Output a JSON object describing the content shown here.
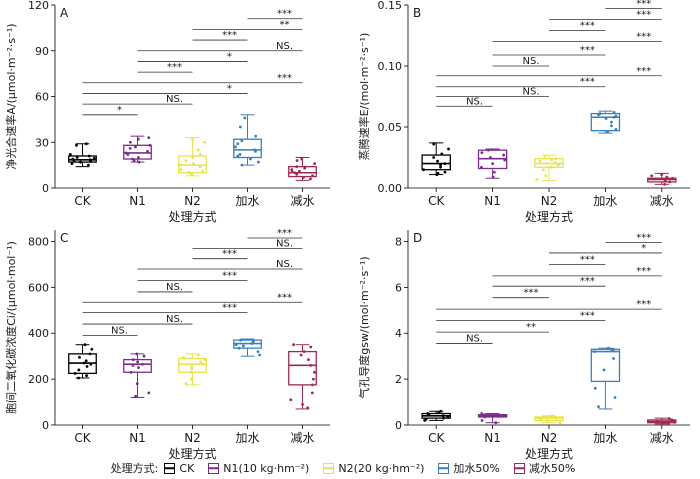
{
  "colors": {
    "CK": "#000000",
    "N1": "#7b2d8e",
    "N2": "#e8e44a",
    "water_add": "#3a7fc0",
    "water_red": "#a1284f"
  },
  "legend": {
    "title": "处理方式:",
    "items": [
      {
        "label": "CK",
        "color": "#000000"
      },
      {
        "label": "N1(10 kg·hm⁻²)",
        "color": "#7b2d8e"
      },
      {
        "label": "N2(20 kg·hm⁻²)",
        "color": "#e8e44a"
      },
      {
        "label": "加水50%",
        "color": "#3a7fc0"
      },
      {
        "label": "减水50%",
        "color": "#a1284f"
      }
    ]
  },
  "chart_data": [
    {
      "panel": "A",
      "type": "box",
      "ylabel": "净光合速率A/(μmol·m⁻²·s⁻¹)",
      "xlabel": "处理方式",
      "categories": [
        "CK",
        "N1",
        "N2",
        "加水",
        "减水"
      ],
      "ylim": [
        0,
        120
      ],
      "yticks": [
        0,
        30,
        60,
        90,
        120
      ],
      "boxes": [
        {
          "min": 14,
          "q1": 17,
          "median": 18.5,
          "q3": 21,
          "max": 29,
          "points": [
            15,
            16,
            17,
            17.5,
            18,
            18.5,
            19,
            19.5,
            20,
            21,
            22,
            28,
            29
          ]
        },
        {
          "min": 17,
          "q1": 19,
          "median": 23,
          "q3": 28,
          "max": 34,
          "points": [
            17,
            18,
            19,
            20,
            22,
            23,
            24,
            26,
            27,
            28,
            30,
            32,
            33
          ]
        },
        {
          "min": 8,
          "q1": 10,
          "median": 15,
          "q3": 21,
          "max": 33,
          "points": [
            9,
            10,
            11,
            12,
            14,
            15,
            16,
            18,
            20,
            22,
            25,
            30,
            32
          ]
        },
        {
          "min": 15,
          "q1": 20,
          "median": 25,
          "q3": 32,
          "max": 48,
          "points": [
            15,
            17,
            19,
            21,
            22,
            24,
            25,
            27,
            29,
            31,
            34,
            40,
            46
          ]
        },
        {
          "min": 5,
          "q1": 7.5,
          "median": 10,
          "q3": 14,
          "max": 20,
          "points": [
            6,
            7,
            8,
            9,
            10,
            10.5,
            11,
            12,
            13,
            14,
            16,
            18,
            19
          ]
        }
      ],
      "comparisons": [
        {
          "from": 0,
          "to": 1,
          "y": 48,
          "label": "*"
        },
        {
          "from": 0,
          "to": 2,
          "y": 55,
          "label": "NS."
        },
        {
          "from": 0,
          "to": 3,
          "y": 62,
          "label": "*"
        },
        {
          "from": 0,
          "to": 4,
          "y": 69,
          "label": "***"
        },
        {
          "from": 1,
          "to": 2,
          "y": 76,
          "label": "***"
        },
        {
          "from": 1,
          "to": 3,
          "y": 83,
          "label": "*"
        },
        {
          "from": 1,
          "to": 4,
          "y": 90,
          "label": "NS."
        },
        {
          "from": 2,
          "to": 3,
          "y": 97,
          "label": "***"
        },
        {
          "from": 2,
          "to": 4,
          "y": 104,
          "label": "**"
        },
        {
          "from": 3,
          "to": 4,
          "y": 111,
          "label": "***"
        }
      ]
    },
    {
      "panel": "B",
      "type": "box",
      "ylabel": "蒸腾速率E/(mol·m⁻²·s⁻¹)",
      "xlabel": "处理方式",
      "categories": [
        "CK",
        "N1",
        "N2",
        "加水",
        "减水"
      ],
      "ylim": [
        0,
        0.15
      ],
      "yticks": [
        "0.00",
        "0.05",
        "0.10",
        "0.15"
      ],
      "boxes": [
        {
          "min": 0.011,
          "q1": 0.015,
          "median": 0.02,
          "q3": 0.027,
          "max": 0.037,
          "points": [
            0.011,
            0.012,
            0.013,
            0.015,
            0.017,
            0.019,
            0.02,
            0.022,
            0.025,
            0.028,
            0.032,
            0.036
          ]
        },
        {
          "min": 0.008,
          "q1": 0.016,
          "median": 0.024,
          "q3": 0.031,
          "max": 0.032,
          "points": [
            0.009,
            0.013,
            0.017,
            0.02,
            0.023,
            0.025,
            0.027,
            0.029,
            0.031
          ]
        },
        {
          "min": 0.006,
          "q1": 0.017,
          "median": 0.02,
          "q3": 0.024,
          "max": 0.027,
          "points": [
            0.007,
            0.01,
            0.015,
            0.017,
            0.019,
            0.021,
            0.022,
            0.023,
            0.024,
            0.026
          ]
        },
        {
          "min": 0.045,
          "q1": 0.047,
          "median": 0.058,
          "q3": 0.061,
          "max": 0.063,
          "points": [
            0.046,
            0.048,
            0.051,
            0.054,
            0.057,
            0.058,
            0.059,
            0.06,
            0.061,
            0.062
          ]
        },
        {
          "min": 0.003,
          "q1": 0.005,
          "median": 0.007,
          "q3": 0.008,
          "max": 0.012,
          "points": [
            0.003,
            0.005,
            0.006,
            0.007,
            0.008,
            0.009,
            0.01,
            0.011
          ]
        }
      ],
      "comparisons": [
        {
          "from": 0,
          "to": 1,
          "y": 0.067,
          "label": "NS."
        },
        {
          "from": 0,
          "to": 2,
          "y": 0.075,
          "label": "NS."
        },
        {
          "from": 0,
          "to": 3,
          "y": 0.083,
          "label": "***"
        },
        {
          "from": 0,
          "to": 4,
          "y": 0.092,
          "label": "***"
        },
        {
          "from": 1,
          "to": 2,
          "y": 0.1,
          "label": "NS."
        },
        {
          "from": 1,
          "to": 3,
          "y": 0.109,
          "label": "***"
        },
        {
          "from": 1,
          "to": 4,
          "y": 0.12,
          "label": "***"
        },
        {
          "from": 2,
          "to": 3,
          "y": 0.129,
          "label": "***"
        },
        {
          "from": 2,
          "to": 4,
          "y": 0.138,
          "label": "***"
        },
        {
          "from": 3,
          "to": 4,
          "y": 0.147,
          "label": "***"
        }
      ]
    },
    {
      "panel": "C",
      "type": "box",
      "ylabel": "胞间二氧化碳浓度Ci/(μmol·mol⁻¹)",
      "xlabel": "处理方式",
      "categories": [
        "CK",
        "N1",
        "N2",
        "加水",
        "减水"
      ],
      "ylim": [
        0,
        850
      ],
      "yticks": [
        0,
        200,
        400,
        600,
        800
      ],
      "boxes": [
        {
          "min": 205,
          "q1": 225,
          "median": 270,
          "q3": 310,
          "max": 350,
          "points": [
            205,
            215,
            225,
            240,
            255,
            265,
            270,
            280,
            295,
            310,
            330,
            350
          ]
        },
        {
          "min": 120,
          "q1": 230,
          "median": 265,
          "q3": 285,
          "max": 310,
          "points": [
            125,
            140,
            180,
            230,
            250,
            260,
            265,
            275,
            285,
            300,
            310
          ]
        },
        {
          "min": 175,
          "q1": 230,
          "median": 265,
          "q3": 290,
          "max": 310,
          "points": [
            180,
            200,
            230,
            245,
            255,
            265,
            275,
            285,
            295,
            305
          ]
        },
        {
          "min": 300,
          "q1": 335,
          "median": 355,
          "q3": 370,
          "max": 375,
          "points": [
            305,
            320,
            335,
            345,
            350,
            355,
            360,
            365,
            370
          ]
        },
        {
          "min": 70,
          "q1": 175,
          "median": 260,
          "q3": 320,
          "max": 350,
          "points": [
            75,
            90,
            110,
            140,
            175,
            200,
            230,
            260,
            285,
            305,
            320,
            340,
            350
          ]
        }
      ],
      "comparisons": [
        {
          "from": 0,
          "to": 1,
          "y": 390,
          "label": "NS."
        },
        {
          "from": 0,
          "to": 2,
          "y": 440,
          "label": "NS."
        },
        {
          "from": 0,
          "to": 3,
          "y": 490,
          "label": "***"
        },
        {
          "from": 0,
          "to": 4,
          "y": 535,
          "label": "***"
        },
        {
          "from": 1,
          "to": 2,
          "y": 580,
          "label": "NS."
        },
        {
          "from": 1,
          "to": 3,
          "y": 630,
          "label": "***"
        },
        {
          "from": 1,
          "to": 4,
          "y": 680,
          "label": "NS."
        },
        {
          "from": 2,
          "to": 3,
          "y": 725,
          "label": "***"
        },
        {
          "from": 2,
          "to": 4,
          "y": 770,
          "label": "NS."
        },
        {
          "from": 3,
          "to": 4,
          "y": 815,
          "label": "***"
        }
      ]
    },
    {
      "panel": "D",
      "type": "box",
      "ylabel": "气孔导度gsw/(mol·m⁻²·s⁻¹)",
      "xlabel": "处理方式",
      "categories": [
        "CK",
        "N1",
        "N2",
        "加水",
        "减水"
      ],
      "ylim": [
        0,
        8.5
      ],
      "yticks": [
        0,
        2,
        4,
        6,
        8
      ],
      "boxes": [
        {
          "min": 0.2,
          "q1": 0.3,
          "median": 0.4,
          "q3": 0.5,
          "max": 0.6,
          "points": [
            0.2,
            0.25,
            0.3,
            0.35,
            0.4,
            0.45,
            0.5,
            0.55,
            0.6
          ]
        },
        {
          "min": 0.1,
          "q1": 0.35,
          "median": 0.4,
          "q3": 0.45,
          "max": 0.5,
          "points": [
            0.1,
            0.2,
            0.35,
            0.4,
            0.42,
            0.45,
            0.5
          ]
        },
        {
          "min": 0.1,
          "q1": 0.2,
          "median": 0.3,
          "q3": 0.35,
          "max": 0.4,
          "points": [
            0.1,
            0.2,
            0.25,
            0.3,
            0.33,
            0.36,
            0.4
          ]
        },
        {
          "min": 0.7,
          "q1": 1.9,
          "median": 3.2,
          "q3": 3.3,
          "max": 3.35,
          "points": [
            0.8,
            1.2,
            1.6,
            2.4,
            2.9,
            3.2,
            3.25,
            3.3,
            3.35
          ]
        },
        {
          "min": 0.05,
          "q1": 0.1,
          "median": 0.15,
          "q3": 0.22,
          "max": 0.3,
          "points": [
            0.05,
            0.1,
            0.12,
            0.15,
            0.18,
            0.22,
            0.28
          ]
        }
      ],
      "comparisons": [
        {
          "from": 0,
          "to": 1,
          "y": 3.55,
          "label": "NS."
        },
        {
          "from": 0,
          "to": 2,
          "y": 4.05,
          "label": "**"
        },
        {
          "from": 0,
          "to": 3,
          "y": 4.55,
          "label": "***"
        },
        {
          "from": 0,
          "to": 4,
          "y": 5.05,
          "label": "***"
        },
        {
          "from": 1,
          "to": 2,
          "y": 5.55,
          "label": "***"
        },
        {
          "from": 1,
          "to": 3,
          "y": 6.05,
          "label": "***"
        },
        {
          "from": 1,
          "to": 4,
          "y": 6.5,
          "label": "***"
        },
        {
          "from": 2,
          "to": 3,
          "y": 7.0,
          "label": "***"
        },
        {
          "from": 2,
          "to": 4,
          "y": 7.5,
          "label": "*"
        },
        {
          "from": 3,
          "to": 4,
          "y": 7.95,
          "label": "***"
        }
      ]
    }
  ]
}
